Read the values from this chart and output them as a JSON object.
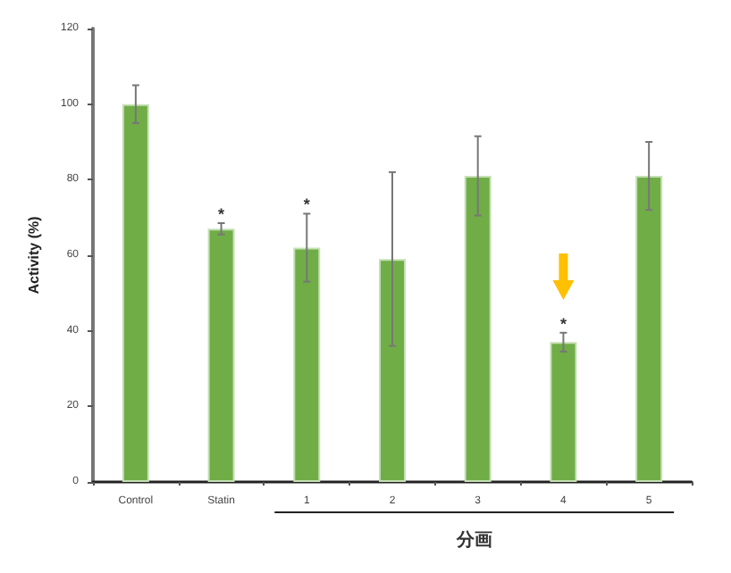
{
  "chart_data": {
    "type": "bar",
    "xlabel": "分画",
    "ylabel": "Activity (%)",
    "categories": [
      "Control",
      "Statin",
      "1",
      "2",
      "3",
      "4",
      "5"
    ],
    "values": [
      100,
      67,
      62,
      59,
      81,
      37,
      81
    ],
    "errors": [
      5,
      1.5,
      9,
      23,
      10.5,
      2.5,
      9
    ],
    "color": "#70ad47",
    "ylim": [
      0,
      120
    ],
    "yticks": [
      0,
      20,
      40,
      60,
      80,
      100,
      120
    ],
    "grid": false,
    "annotations": [
      {
        "text": "*",
        "x": "Statin",
        "y": 68.5
      },
      {
        "text": "*",
        "x": "1",
        "y": 71
      },
      {
        "text": "*",
        "x": "4",
        "y": 39.5
      }
    ]
  }
}
